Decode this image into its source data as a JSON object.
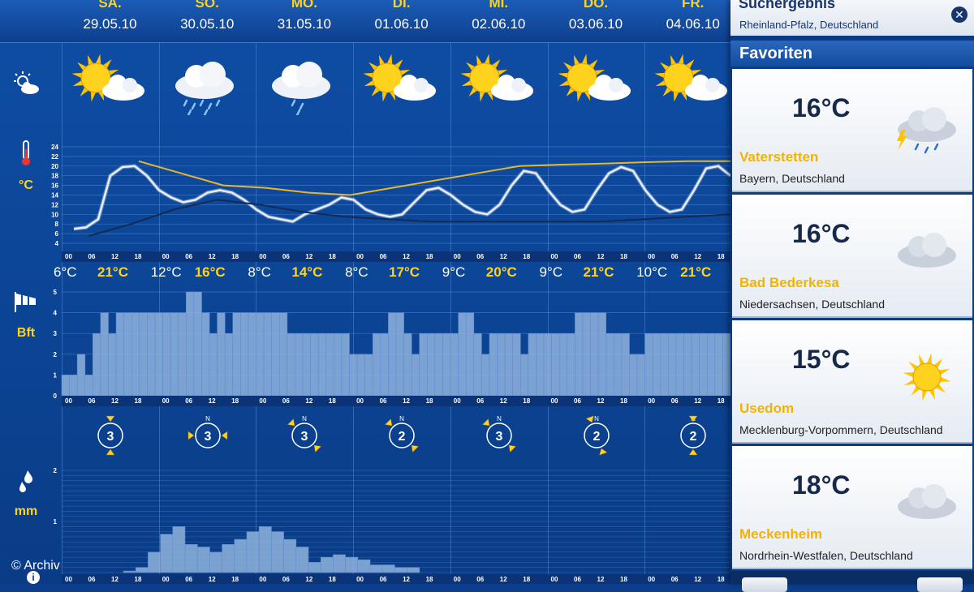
{
  "days": [
    {
      "name": "SA.",
      "date": "29.05.10",
      "icon": "sun-cloud-icon",
      "min": "6°C",
      "max": "21°C",
      "wind": "3",
      "dir": "S"
    },
    {
      "name": "SO.",
      "date": "30.05.10",
      "icon": "rain-cloud-icon",
      "min": "12°C",
      "max": "16°C",
      "wind": "3",
      "dir": "W-E"
    },
    {
      "name": "MO.",
      "date": "31.05.10",
      "icon": "light-rain-cloud-icon",
      "min": "8°C",
      "max": "14°C",
      "wind": "3",
      "dir": "NW"
    },
    {
      "name": "DI.",
      "date": "01.06.10",
      "icon": "sun-cloud-icon",
      "min": "8°C",
      "max": "17°C",
      "wind": "2",
      "dir": "NW"
    },
    {
      "name": "MI.",
      "date": "02.06.10",
      "icon": "sun-cloud-icon",
      "min": "9°C",
      "max": "20°C",
      "wind": "3",
      "dir": "NW"
    },
    {
      "name": "DO.",
      "date": "03.06.10",
      "icon": "sun-cloud-icon",
      "min": "9°C",
      "max": "21°C",
      "wind": "2",
      "dir": "N"
    },
    {
      "name": "FR.",
      "date": "04.06.10",
      "icon": "sun-cloud-icon",
      "min": "10°C",
      "max": "21°C",
      "wind": "2",
      "dir": "N"
    }
  ],
  "rows": {
    "weather_icon": "partly-cloudy-icon",
    "temp_icon": "thermometer-icon",
    "temp_unit": "°C",
    "wind_icon": "windsock-icon",
    "wind_unit": "Bft",
    "rain_icon": "raindrops-icon",
    "rain_unit": "mm"
  },
  "hour_ticks": [
    "00",
    "06",
    "12",
    "18"
  ],
  "chart_data": [
    {
      "type": "line",
      "title": "",
      "ylabel": "°C",
      "ylim": [
        4,
        24
      ],
      "yticks": [
        4,
        6,
        8,
        10,
        12,
        14,
        16,
        18,
        20,
        22,
        24
      ],
      "series": [
        {
          "values": [
            7,
            7.3,
            9,
            18,
            19.8,
            20,
            18,
            15,
            13.5,
            12.5,
            13,
            14.5,
            15,
            14.5,
            13,
            11,
            9.5,
            9,
            8.5,
            10,
            11,
            12,
            13.5,
            13,
            11,
            10,
            9.5,
            10,
            12.5,
            15,
            15.5,
            14,
            12,
            10.5,
            10,
            12,
            16,
            19,
            18.5,
            15,
            12,
            10.5,
            11,
            15,
            18.5,
            19.8,
            19,
            15,
            12,
            10.5,
            11,
            15,
            19.5,
            20,
            18
          ]
        },
        {
          "values": [
            21,
            18.5,
            16,
            15.5,
            14.5,
            14,
            15.5,
            17,
            18.5,
            20,
            20.3,
            20.5,
            20.8,
            21,
            21
          ]
        },
        {
          "values": [
            5.5,
            8,
            11,
            13,
            12,
            10.5,
            9.5,
            9,
            8.5,
            8.5,
            8.5,
            8.5,
            8.5,
            9,
            9.5,
            10
          ]
        }
      ]
    },
    {
      "type": "bar",
      "title": "",
      "ylabel": "Bft",
      "ylim": [
        0,
        5
      ],
      "yticks": [
        0,
        1,
        2,
        3,
        4,
        5
      ],
      "values": [
        1,
        1,
        2,
        1,
        3,
        4,
        3,
        4,
        4,
        4,
        4,
        4,
        4,
        4,
        4,
        4,
        5,
        5,
        4,
        3,
        4,
        3,
        4,
        4,
        4,
        4,
        4,
        4,
        4,
        3,
        3,
        3,
        3,
        3,
        3,
        3,
        3,
        2,
        2,
        2,
        3,
        3,
        4,
        4,
        3,
        2,
        3,
        3,
        3,
        3,
        3,
        4,
        4,
        3,
        2,
        3,
        3,
        3,
        3,
        2,
        3,
        3,
        3,
        3,
        3,
        3,
        4,
        4,
        4,
        4,
        3,
        3,
        3,
        2,
        2,
        3,
        3,
        3,
        3,
        3,
        3,
        3,
        3,
        3,
        3,
        3
      ]
    },
    {
      "type": "bar",
      "title": "",
      "ylabel": "mm",
      "ylim": [
        0,
        2
      ],
      "yticks": [
        0,
        1,
        2
      ],
      "values": [
        0,
        0,
        0,
        0,
        0,
        0.03,
        0.1,
        0.4,
        0.75,
        0.9,
        0.55,
        0.5,
        0.4,
        0.55,
        0.65,
        0.8,
        0.9,
        0.8,
        0.65,
        0.5,
        0.2,
        0.3,
        0.35,
        0.3,
        0.25,
        0.15,
        0.15,
        0.1,
        0.1,
        0,
        0,
        0,
        0,
        0,
        0,
        0,
        0,
        0,
        0,
        0,
        0
      ]
    }
  ],
  "panel": {
    "title": "Suchergebnis",
    "subtitle": "Rheinland-Pfalz, Deutschland",
    "close_icon": "close-icon",
    "favorites_label": "Favoriten",
    "cards": [
      {
        "temp": "16°C",
        "city": "Vaterstetten",
        "region": "Bayern, Deutschland",
        "icon": "thunderstorm-icon"
      },
      {
        "temp": "16°C",
        "city": "Bad Bederkesa",
        "region": "Niedersachsen, Deutschland",
        "icon": "cloud-icon"
      },
      {
        "temp": "15°C",
        "city": "Usedom",
        "region": "Mecklenburg-Vorpommern, Deutschland",
        "icon": "sun-icon"
      },
      {
        "temp": "18°C",
        "city": "Meckenheim",
        "region": "Nordrhein-Westfalen, Deutschland",
        "icon": "cloud-icon"
      }
    ]
  },
  "footer": {
    "credit": "© Archiv",
    "info_icon": "i"
  },
  "colors": {
    "accent": "#ffd21e",
    "bg": "#0b3f8e",
    "bar": "#8fb3de",
    "line_yellow": "#e6b62e"
  }
}
